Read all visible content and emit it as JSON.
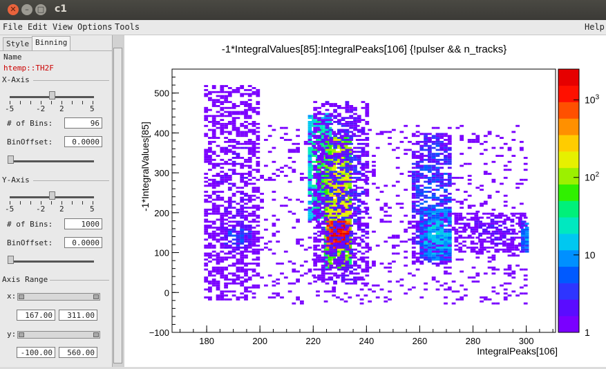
{
  "window": {
    "title": "c1"
  },
  "menu": {
    "file": "File",
    "edit": "Edit",
    "view": "View",
    "options": "Options",
    "tools": "Tools",
    "help": "Help"
  },
  "panel": {
    "tabs": [
      "Style",
      "Binning"
    ],
    "name_label": "Name",
    "object_name": "htemp::TH2F",
    "x_axis": {
      "title": "X-Axis",
      "scale": [
        "-5",
        "-2",
        "2",
        "5"
      ],
      "bins_label": "# of Bins:",
      "bins": "96",
      "offset_label": "BinOffset:",
      "offset": "0.0000"
    },
    "y_axis": {
      "title": "Y-Axis",
      "scale": [
        "-5",
        "-2",
        "2",
        "5"
      ],
      "bins_label": "# of Bins:",
      "bins": "1000",
      "offset_label": "BinOffset:",
      "offset": "0.0000"
    },
    "axis_range": {
      "title": "Axis Range",
      "x_label": "x:",
      "x_min": "167.00",
      "x_max": "311.00",
      "y_label": "y:",
      "y_min": "-100.00",
      "y_max": "560.00"
    }
  },
  "colors": {
    "accent_red": "#cc0000"
  },
  "chart_data": {
    "type": "heatmap",
    "title": "-1*IntegralValues[85]:IntegralPeaks[106] {!pulser && n_tracks}",
    "xlabel": "IntegralPeaks[106]",
    "ylabel": "-1*IntegralValues[85]",
    "xlim": [
      167,
      311
    ],
    "ylim": [
      -100,
      560
    ],
    "x_ticks": [
      "180",
      "200",
      "220",
      "240",
      "260",
      "280",
      "300"
    ],
    "y_ticks": [
      "−100",
      "0",
      "100",
      "200",
      "300",
      "400",
      "500"
    ],
    "z_scale": "log",
    "z_ticks": [
      {
        "value": 1,
        "label": "1",
        "exp": ""
      },
      {
        "value": 10,
        "label": "10",
        "exp": ""
      },
      {
        "value": 100,
        "label": "10",
        "exp": "2"
      },
      {
        "value": 1000,
        "label": "10",
        "exp": "3"
      }
    ],
    "zlim": [
      1,
      2500
    ],
    "blobs": [
      {
        "x": [
          179,
          200
        ],
        "y": [
          -20,
          520
        ],
        "density": 0.5,
        "intensity": 1.5
      },
      {
        "x": [
          185,
          196
        ],
        "y": [
          110,
          170
        ],
        "density": 0.7,
        "intensity": 4
      },
      {
        "x": [
          218,
          226
        ],
        "y": [
          180,
          450
        ],
        "density": 0.85,
        "intensity": 40
      },
      {
        "x": [
          224,
          234
        ],
        "y": [
          60,
          390
        ],
        "density": 0.95,
        "intensity": 200
      },
      {
        "x": [
          225,
          233
        ],
        "y": [
          110,
          180
        ],
        "density": 1,
        "intensity": 2000
      },
      {
        "x": [
          220,
          240
        ],
        "y": [
          20,
          480
        ],
        "density": 0.5,
        "intensity": 3
      },
      {
        "x": [
          257,
          272
        ],
        "y": [
          70,
          400
        ],
        "density": 0.6,
        "intensity": 5
      },
      {
        "x": [
          260,
          272
        ],
        "y": [
          80,
          210
        ],
        "density": 0.85,
        "intensity": 15
      },
      {
        "x": [
          200,
          300
        ],
        "y": [
          -30,
          420
        ],
        "density": 0.12,
        "intensity": 1
      },
      {
        "x": [
          273,
          300
        ],
        "y": [
          100,
          200
        ],
        "density": 0.55,
        "intensity": 2
      },
      {
        "x": [
          298,
          300
        ],
        "y": [
          100,
          180
        ],
        "density": 0.9,
        "intensity": 12
      }
    ]
  }
}
